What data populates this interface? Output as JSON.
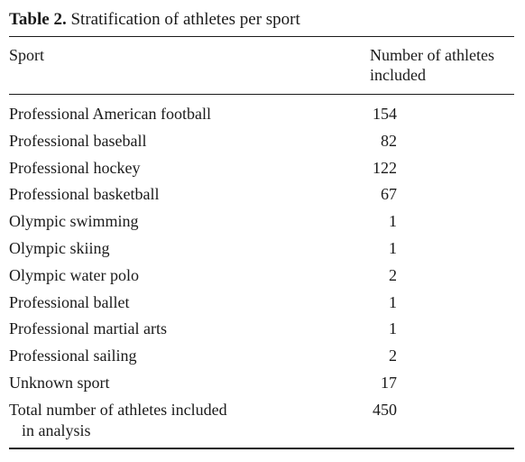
{
  "caption": {
    "label": "Table 2.",
    "title": "Stratification of athletes per sport"
  },
  "header": {
    "sport": "Sport",
    "number": "Number of athletes included"
  },
  "rows": [
    {
      "sport": "Professional American football",
      "number": "154"
    },
    {
      "sport": "Professional baseball",
      "number": "82"
    },
    {
      "sport": "Professional hockey",
      "number": "122"
    },
    {
      "sport": "Professional basketball",
      "number": "67"
    },
    {
      "sport": "Olympic swimming",
      "number": "1"
    },
    {
      "sport": "Olympic skiing",
      "number": "1"
    },
    {
      "sport": "Olympic water polo",
      "number": "2"
    },
    {
      "sport": "Professional ballet",
      "number": "1"
    },
    {
      "sport": "Professional martial arts",
      "number": "1"
    },
    {
      "sport": "Professional sailing",
      "number": "2"
    },
    {
      "sport": "Unknown sport",
      "number": "17"
    }
  ],
  "total": {
    "line1": "Total number of athletes included",
    "line2": "in analysis",
    "number": "450"
  }
}
